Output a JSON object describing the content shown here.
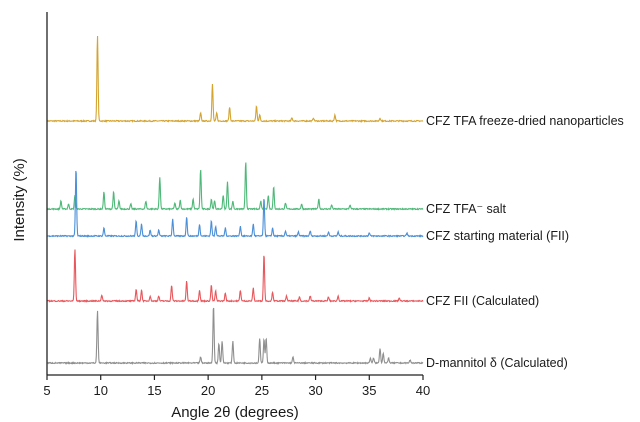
{
  "chart_data": {
    "type": "line",
    "xlabel": "Angle 2θ (degrees)",
    "ylabel": "Intensity (%)",
    "xlim": [
      5,
      40
    ],
    "x_ticks": [
      5,
      10,
      15,
      20,
      25,
      30,
      35,
      40
    ],
    "y_ticks": "none",
    "grid": false,
    "legend": "labels at right end of each stacked trace",
    "series": [
      {
        "name": "CFZ TFA freeze-dried nanoparticles",
        "color": "#d4a431",
        "baseline": 0,
        "peaks": [
          [
            9.7,
            85
          ],
          [
            19.3,
            8
          ],
          [
            20.4,
            37
          ],
          [
            20.8,
            8
          ],
          [
            22.0,
            14
          ],
          [
            24.5,
            15
          ],
          [
            24.8,
            6
          ],
          [
            27.8,
            3
          ],
          [
            29.8,
            3
          ],
          [
            31.8,
            6
          ],
          [
            36.0,
            3
          ]
        ]
      },
      {
        "name": "CFZ TFA⁻ salt",
        "color": "#4db877",
        "baseline": 0,
        "peaks": [
          [
            6.3,
            8
          ],
          [
            7.0,
            5
          ],
          [
            7.6,
            14
          ],
          [
            10.3,
            17
          ],
          [
            11.2,
            17
          ],
          [
            11.7,
            8
          ],
          [
            12.8,
            5
          ],
          [
            14.2,
            8
          ],
          [
            15.5,
            32
          ],
          [
            16.9,
            6
          ],
          [
            17.4,
            9
          ],
          [
            18.6,
            10
          ],
          [
            19.3,
            40
          ],
          [
            20.3,
            10
          ],
          [
            20.6,
            8
          ],
          [
            21.4,
            14
          ],
          [
            21.8,
            27
          ],
          [
            22.3,
            8
          ],
          [
            23.5,
            47
          ],
          [
            24.9,
            8
          ],
          [
            25.6,
            14
          ],
          [
            26.1,
            22
          ],
          [
            27.2,
            6
          ],
          [
            28.7,
            5
          ],
          [
            30.3,
            10
          ],
          [
            31.5,
            4
          ],
          [
            33.2,
            4
          ]
        ]
      },
      {
        "name": "CFZ starting material (FII)",
        "color": "#4a8fd8",
        "baseline": 0,
        "peaks": [
          [
            7.7,
            68
          ],
          [
            10.3,
            8
          ],
          [
            13.3,
            15
          ],
          [
            13.8,
            12
          ],
          [
            14.6,
            6
          ],
          [
            15.4,
            6
          ],
          [
            16.7,
            17
          ],
          [
            18.0,
            19
          ],
          [
            19.2,
            12
          ],
          [
            20.3,
            15
          ],
          [
            20.7,
            10
          ],
          [
            21.6,
            8
          ],
          [
            23.0,
            10
          ],
          [
            24.2,
            12
          ],
          [
            25.2,
            38
          ],
          [
            26.0,
            8
          ],
          [
            27.2,
            5
          ],
          [
            28.4,
            4
          ],
          [
            29.5,
            5
          ],
          [
            31.2,
            4
          ],
          [
            32.1,
            4
          ],
          [
            35.0,
            3
          ],
          [
            38.5,
            3
          ]
        ]
      },
      {
        "name": "CFZ FII (Calculated)",
        "color": "#e8575c",
        "baseline": 0,
        "peaks": [
          [
            7.6,
            52
          ],
          [
            10.1,
            6
          ],
          [
            13.3,
            12
          ],
          [
            13.8,
            11
          ],
          [
            14.6,
            5
          ],
          [
            15.4,
            5
          ],
          [
            16.6,
            16
          ],
          [
            18.0,
            20
          ],
          [
            19.2,
            11
          ],
          [
            20.3,
            16
          ],
          [
            20.7,
            10
          ],
          [
            21.6,
            8
          ],
          [
            23.0,
            11
          ],
          [
            24.2,
            13
          ],
          [
            25.2,
            47
          ],
          [
            26.0,
            9
          ],
          [
            27.3,
            5
          ],
          [
            28.5,
            4
          ],
          [
            29.5,
            5
          ],
          [
            31.2,
            4
          ],
          [
            32.1,
            5
          ],
          [
            35.0,
            3
          ],
          [
            37.8,
            3
          ]
        ]
      },
      {
        "name": "D-mannitol δ (Calculated)",
        "color": "#8f8f8f",
        "baseline": 0,
        "peaks": [
          [
            9.7,
            52
          ],
          [
            19.3,
            6
          ],
          [
            20.5,
            58
          ],
          [
            21.0,
            20
          ],
          [
            21.3,
            22
          ],
          [
            22.3,
            22
          ],
          [
            24.8,
            25
          ],
          [
            25.2,
            24
          ],
          [
            25.4,
            25
          ],
          [
            27.9,
            6
          ],
          [
            35.1,
            5
          ],
          [
            35.4,
            5
          ],
          [
            36.0,
            15
          ],
          [
            36.3,
            10
          ],
          [
            36.8,
            5
          ],
          [
            38.8,
            3
          ]
        ]
      }
    ]
  }
}
